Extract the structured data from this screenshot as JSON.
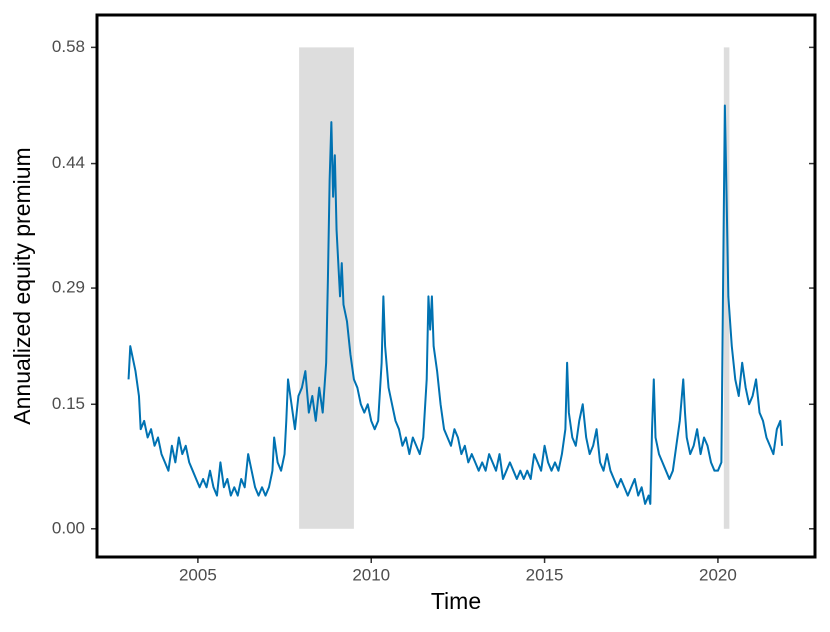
{
  "chart_data": {
    "type": "line",
    "x_label": "Time",
    "y_label": "Annualized equity premium",
    "xlim": [
      2002.09,
      2022.8
    ],
    "ylim": [
      -0.034,
      0.619
    ],
    "xticks": [
      2005,
      2010,
      2015,
      2020
    ],
    "yticks": [
      {
        "value": 0,
        "label": "0.00"
      },
      0.15,
      0.29,
      0.44,
      0.58
    ],
    "shaded_regions": [
      [
        2007.92,
        2009.5
      ],
      [
        2020.17,
        2020.33
      ]
    ],
    "shade_color": "#dddddd",
    "shade_range": [
      0,
      0.58
    ],
    "x": [
      2003.0,
      2003.05,
      2003.1,
      2003.2,
      2003.3,
      2003.35,
      2003.45,
      2003.55,
      2003.65,
      2003.75,
      2003.85,
      2003.95,
      2004.05,
      2004.15,
      2004.25,
      2004.35,
      2004.45,
      2004.55,
      2004.65,
      2004.75,
      2004.85,
      2004.95,
      2005.05,
      2005.15,
      2005.25,
      2005.35,
      2005.45,
      2005.55,
      2005.65,
      2005.75,
      2005.85,
      2005.95,
      2006.05,
      2006.15,
      2006.25,
      2006.35,
      2006.45,
      2006.55,
      2006.65,
      2006.75,
      2006.85,
      2006.95,
      2007.05,
      2007.15,
      2007.2,
      2007.3,
      2007.4,
      2007.5,
      2007.55,
      2007.6,
      2007.7,
      2007.8,
      2007.9,
      2008.0,
      2008.1,
      2008.2,
      2008.3,
      2008.4,
      2008.5,
      2008.6,
      2008.7,
      2008.75,
      2008.8,
      2008.85,
      2008.9,
      2008.95,
      2009.0,
      2009.1,
      2009.15,
      2009.2,
      2009.3,
      2009.4,
      2009.5,
      2009.6,
      2009.7,
      2009.8,
      2009.9,
      2010.0,
      2010.1,
      2010.2,
      2010.3,
      2010.35,
      2010.4,
      2010.5,
      2010.6,
      2010.7,
      2010.8,
      2010.9,
      2011.0,
      2011.1,
      2011.2,
      2011.3,
      2011.4,
      2011.5,
      2011.6,
      2011.65,
      2011.7,
      2011.75,
      2011.8,
      2011.9,
      2012.0,
      2012.1,
      2012.2,
      2012.3,
      2012.4,
      2012.5,
      2012.6,
      2012.7,
      2012.8,
      2012.9,
      2013.0,
      2013.1,
      2013.2,
      2013.3,
      2013.4,
      2013.5,
      2013.6,
      2013.7,
      2013.8,
      2013.9,
      2014.0,
      2014.1,
      2014.2,
      2014.3,
      2014.4,
      2014.5,
      2014.6,
      2014.7,
      2014.8,
      2014.9,
      2015.0,
      2015.1,
      2015.2,
      2015.3,
      2015.4,
      2015.5,
      2015.6,
      2015.65,
      2015.7,
      2015.8,
      2015.9,
      2016.0,
      2016.1,
      2016.2,
      2016.3,
      2016.4,
      2016.5,
      2016.6,
      2016.7,
      2016.8,
      2016.9,
      2017.0,
      2017.1,
      2017.2,
      2017.3,
      2017.4,
      2017.5,
      2017.6,
      2017.7,
      2017.8,
      2017.9,
      2018.0,
      2018.05,
      2018.1,
      2018.15,
      2018.2,
      2018.3,
      2018.4,
      2018.5,
      2018.6,
      2018.7,
      2018.8,
      2018.9,
      2019.0,
      2019.05,
      2019.1,
      2019.2,
      2019.3,
      2019.4,
      2019.5,
      2019.6,
      2019.7,
      2019.8,
      2019.9,
      2020.0,
      2020.1,
      2020.15,
      2020.2,
      2020.25,
      2020.3,
      2020.4,
      2020.5,
      2020.6,
      2020.7,
      2020.8,
      2020.9,
      2021.0,
      2021.1,
      2021.2,
      2021.3,
      2021.4,
      2021.5,
      2021.6,
      2021.7,
      2021.8,
      2021.85
    ],
    "series": [
      {
        "color": "#0072b2",
        "values": [
          0.18,
          0.22,
          0.21,
          0.19,
          0.16,
          0.12,
          0.13,
          0.11,
          0.12,
          0.1,
          0.11,
          0.09,
          0.08,
          0.07,
          0.1,
          0.08,
          0.11,
          0.09,
          0.1,
          0.08,
          0.07,
          0.06,
          0.05,
          0.06,
          0.05,
          0.07,
          0.05,
          0.04,
          0.08,
          0.05,
          0.06,
          0.04,
          0.05,
          0.04,
          0.06,
          0.05,
          0.09,
          0.07,
          0.05,
          0.04,
          0.05,
          0.04,
          0.05,
          0.07,
          0.11,
          0.08,
          0.07,
          0.09,
          0.13,
          0.18,
          0.15,
          0.12,
          0.16,
          0.17,
          0.19,
          0.14,
          0.16,
          0.13,
          0.17,
          0.14,
          0.2,
          0.3,
          0.42,
          0.49,
          0.4,
          0.45,
          0.36,
          0.28,
          0.32,
          0.27,
          0.25,
          0.21,
          0.18,
          0.17,
          0.15,
          0.14,
          0.15,
          0.13,
          0.12,
          0.13,
          0.2,
          0.28,
          0.22,
          0.17,
          0.15,
          0.13,
          0.12,
          0.1,
          0.11,
          0.09,
          0.11,
          0.1,
          0.09,
          0.11,
          0.18,
          0.28,
          0.24,
          0.28,
          0.22,
          0.19,
          0.15,
          0.12,
          0.11,
          0.1,
          0.12,
          0.11,
          0.09,
          0.1,
          0.08,
          0.09,
          0.08,
          0.07,
          0.08,
          0.07,
          0.09,
          0.08,
          0.07,
          0.09,
          0.06,
          0.07,
          0.08,
          0.07,
          0.06,
          0.07,
          0.06,
          0.07,
          0.06,
          0.09,
          0.08,
          0.07,
          0.1,
          0.08,
          0.07,
          0.08,
          0.07,
          0.09,
          0.12,
          0.2,
          0.14,
          0.11,
          0.1,
          0.13,
          0.15,
          0.11,
          0.09,
          0.1,
          0.12,
          0.08,
          0.07,
          0.09,
          0.07,
          0.06,
          0.05,
          0.06,
          0.05,
          0.04,
          0.05,
          0.06,
          0.04,
          0.05,
          0.03,
          0.04,
          0.03,
          0.12,
          0.18,
          0.11,
          0.09,
          0.08,
          0.07,
          0.06,
          0.07,
          0.1,
          0.13,
          0.18,
          0.14,
          0.11,
          0.09,
          0.1,
          0.12,
          0.09,
          0.11,
          0.1,
          0.08,
          0.07,
          0.07,
          0.08,
          0.3,
          0.51,
          0.4,
          0.28,
          0.22,
          0.18,
          0.16,
          0.2,
          0.17,
          0.15,
          0.16,
          0.18,
          0.14,
          0.13,
          0.11,
          0.1,
          0.09,
          0.12,
          0.13,
          0.1
        ]
      }
    ]
  }
}
